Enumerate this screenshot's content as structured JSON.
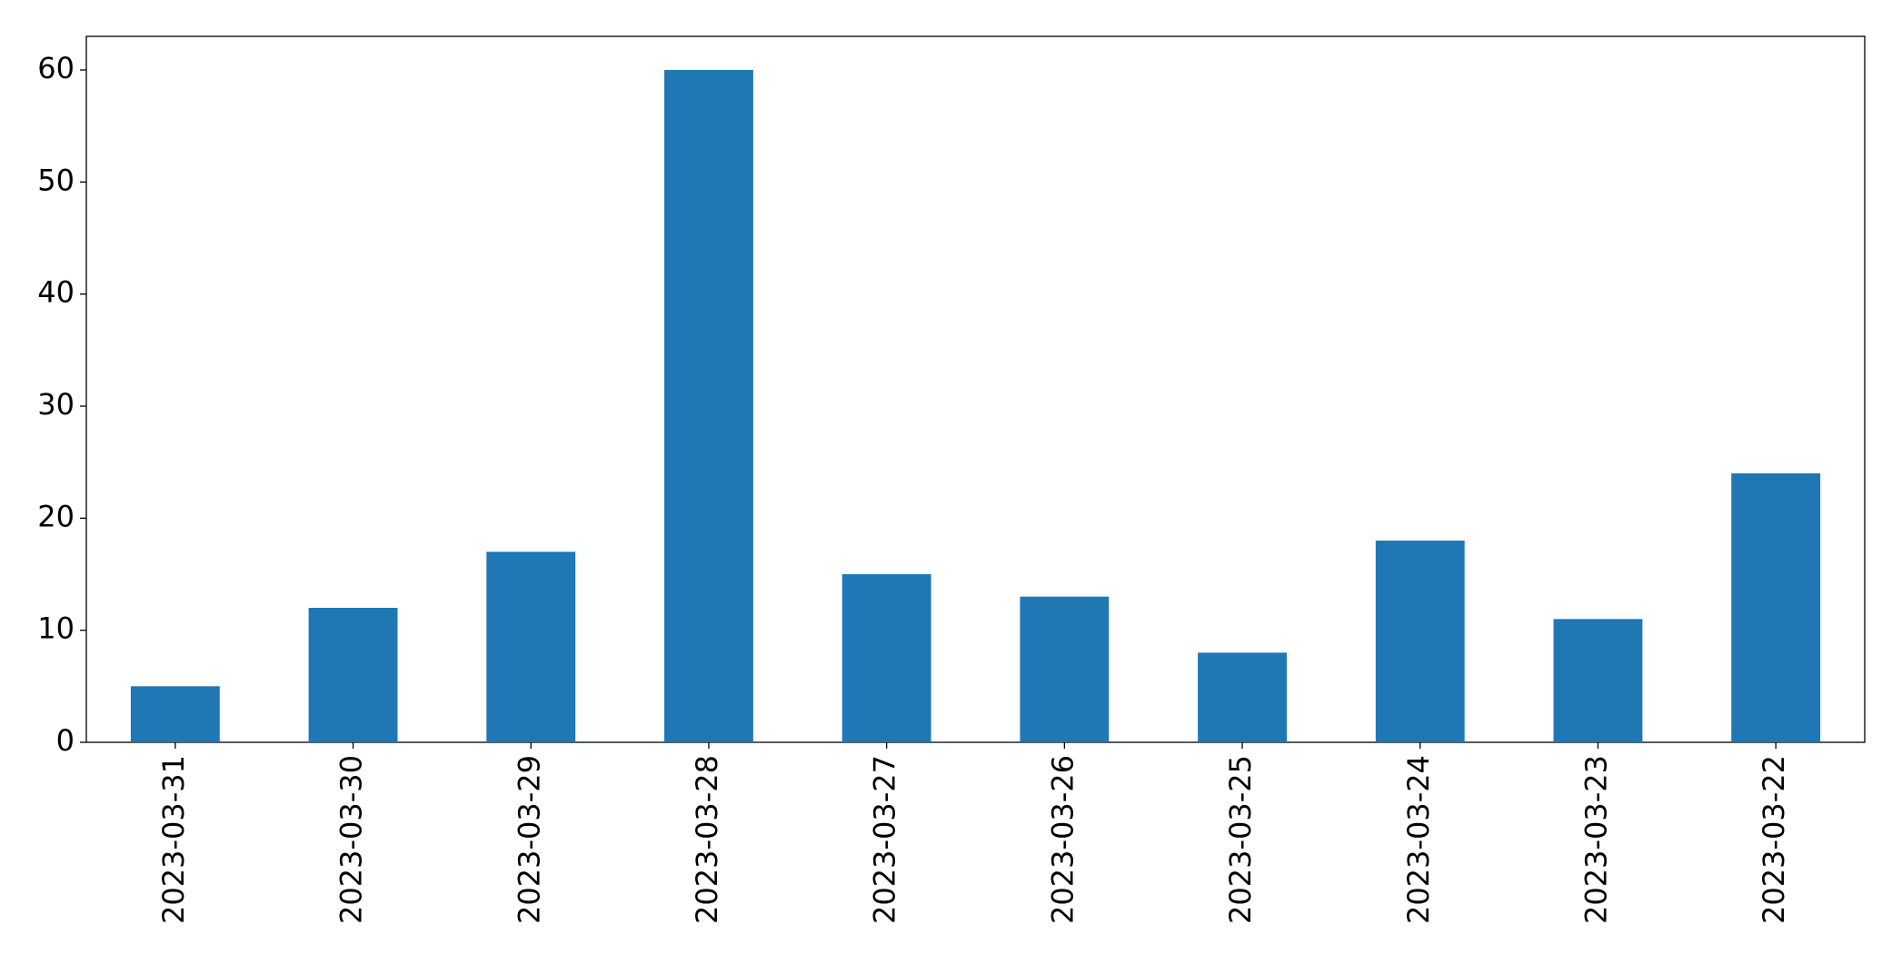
{
  "chart_data": {
    "type": "bar",
    "categories": [
      "2023-03-31",
      "2023-03-30",
      "2023-03-29",
      "2023-03-28",
      "2023-03-27",
      "2023-03-26",
      "2023-03-25",
      "2023-03-24",
      "2023-03-23",
      "2023-03-22"
    ],
    "values": [
      5,
      12,
      17,
      60,
      15,
      13,
      8,
      18,
      11,
      24
    ],
    "color": "#1f77b4",
    "ylim": [
      0,
      63
    ],
    "yticks": [
      0,
      10,
      20,
      30,
      40,
      50,
      60
    ],
    "grid": false
  }
}
